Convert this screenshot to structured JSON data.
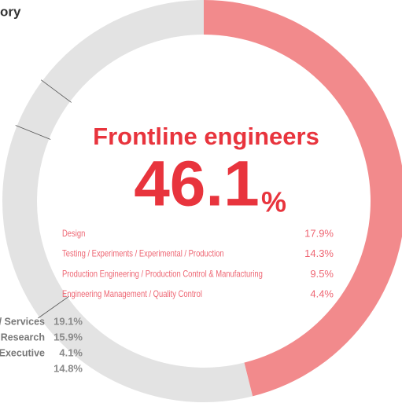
{
  "chart_data": {
    "type": "donut",
    "title": "ory",
    "categories": [
      "Frontline engineers",
      "/ Services",
      "Research",
      "Executive",
      null
    ],
    "values": [
      46.1,
      19.1,
      15.9,
      4.1,
      14.8
    ],
    "value_labels": [
      "46.1",
      "19.1%",
      "15.9%",
      "4.1%",
      "14.8%"
    ],
    "unit": "%",
    "colors": [
      "#f28a8c",
      "#e3e3e3",
      "#e3e3e3",
      "#e3e3e3",
      "#e3e3e3"
    ],
    "breakdown": {
      "categories": [
        "Design",
        "Testing / Experiments / Experimental / Production",
        "Production Engineering / Production Control & Manufacturing",
        "Engineering Management / Quality Control"
      ],
      "values": [
        17.9,
        14.3,
        9.5,
        4.4
      ],
      "value_labels": [
        "17.9%",
        "14.3%",
        "9.5%",
        "4.4%"
      ]
    }
  }
}
